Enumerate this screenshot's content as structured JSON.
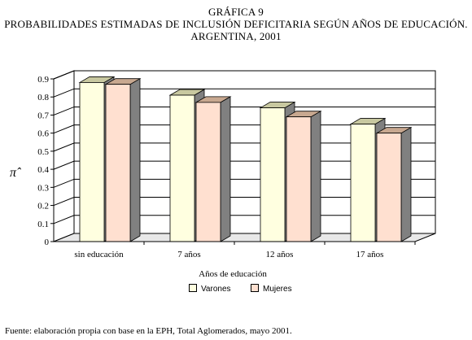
{
  "header": {
    "line1": "GRÁFICA 9",
    "line2": "PROBABILIDADES ESTIMADAS DE INCLUSIÓN DEFICITARIA SEGÚN AÑOS DE EDUCACIÓN.",
    "line3": "ARGENTINA, 2001"
  },
  "source": "Fuente: elaboración propia con base en la EPH, Total Aglomerados, mayo 2001.",
  "chart_data": {
    "type": "bar",
    "categories": [
      "sin educación",
      "7 años",
      "12 años",
      "17 años"
    ],
    "series": [
      {
        "name": "Varones",
        "values": [
          0.88,
          0.81,
          0.74,
          0.65
        ],
        "color": "#FFFFE0",
        "side": "#808080",
        "top": "#C8C8A0"
      },
      {
        "name": "Mujeres",
        "values": [
          0.87,
          0.77,
          0.69,
          0.6
        ],
        "color": "#FFE0D0",
        "side": "#808080",
        "top": "#C8A890"
      }
    ],
    "xlabel": "Años de educación",
    "ylabel": "π̂",
    "ylim": [
      0,
      0.9
    ],
    "yticks": [
      "0",
      "0.1",
      "0.2",
      "0.3",
      "0.4",
      "0.5",
      "0.6",
      "0.7",
      "0.8",
      "0.9"
    ],
    "grid": true,
    "legend_position": "bottom"
  }
}
